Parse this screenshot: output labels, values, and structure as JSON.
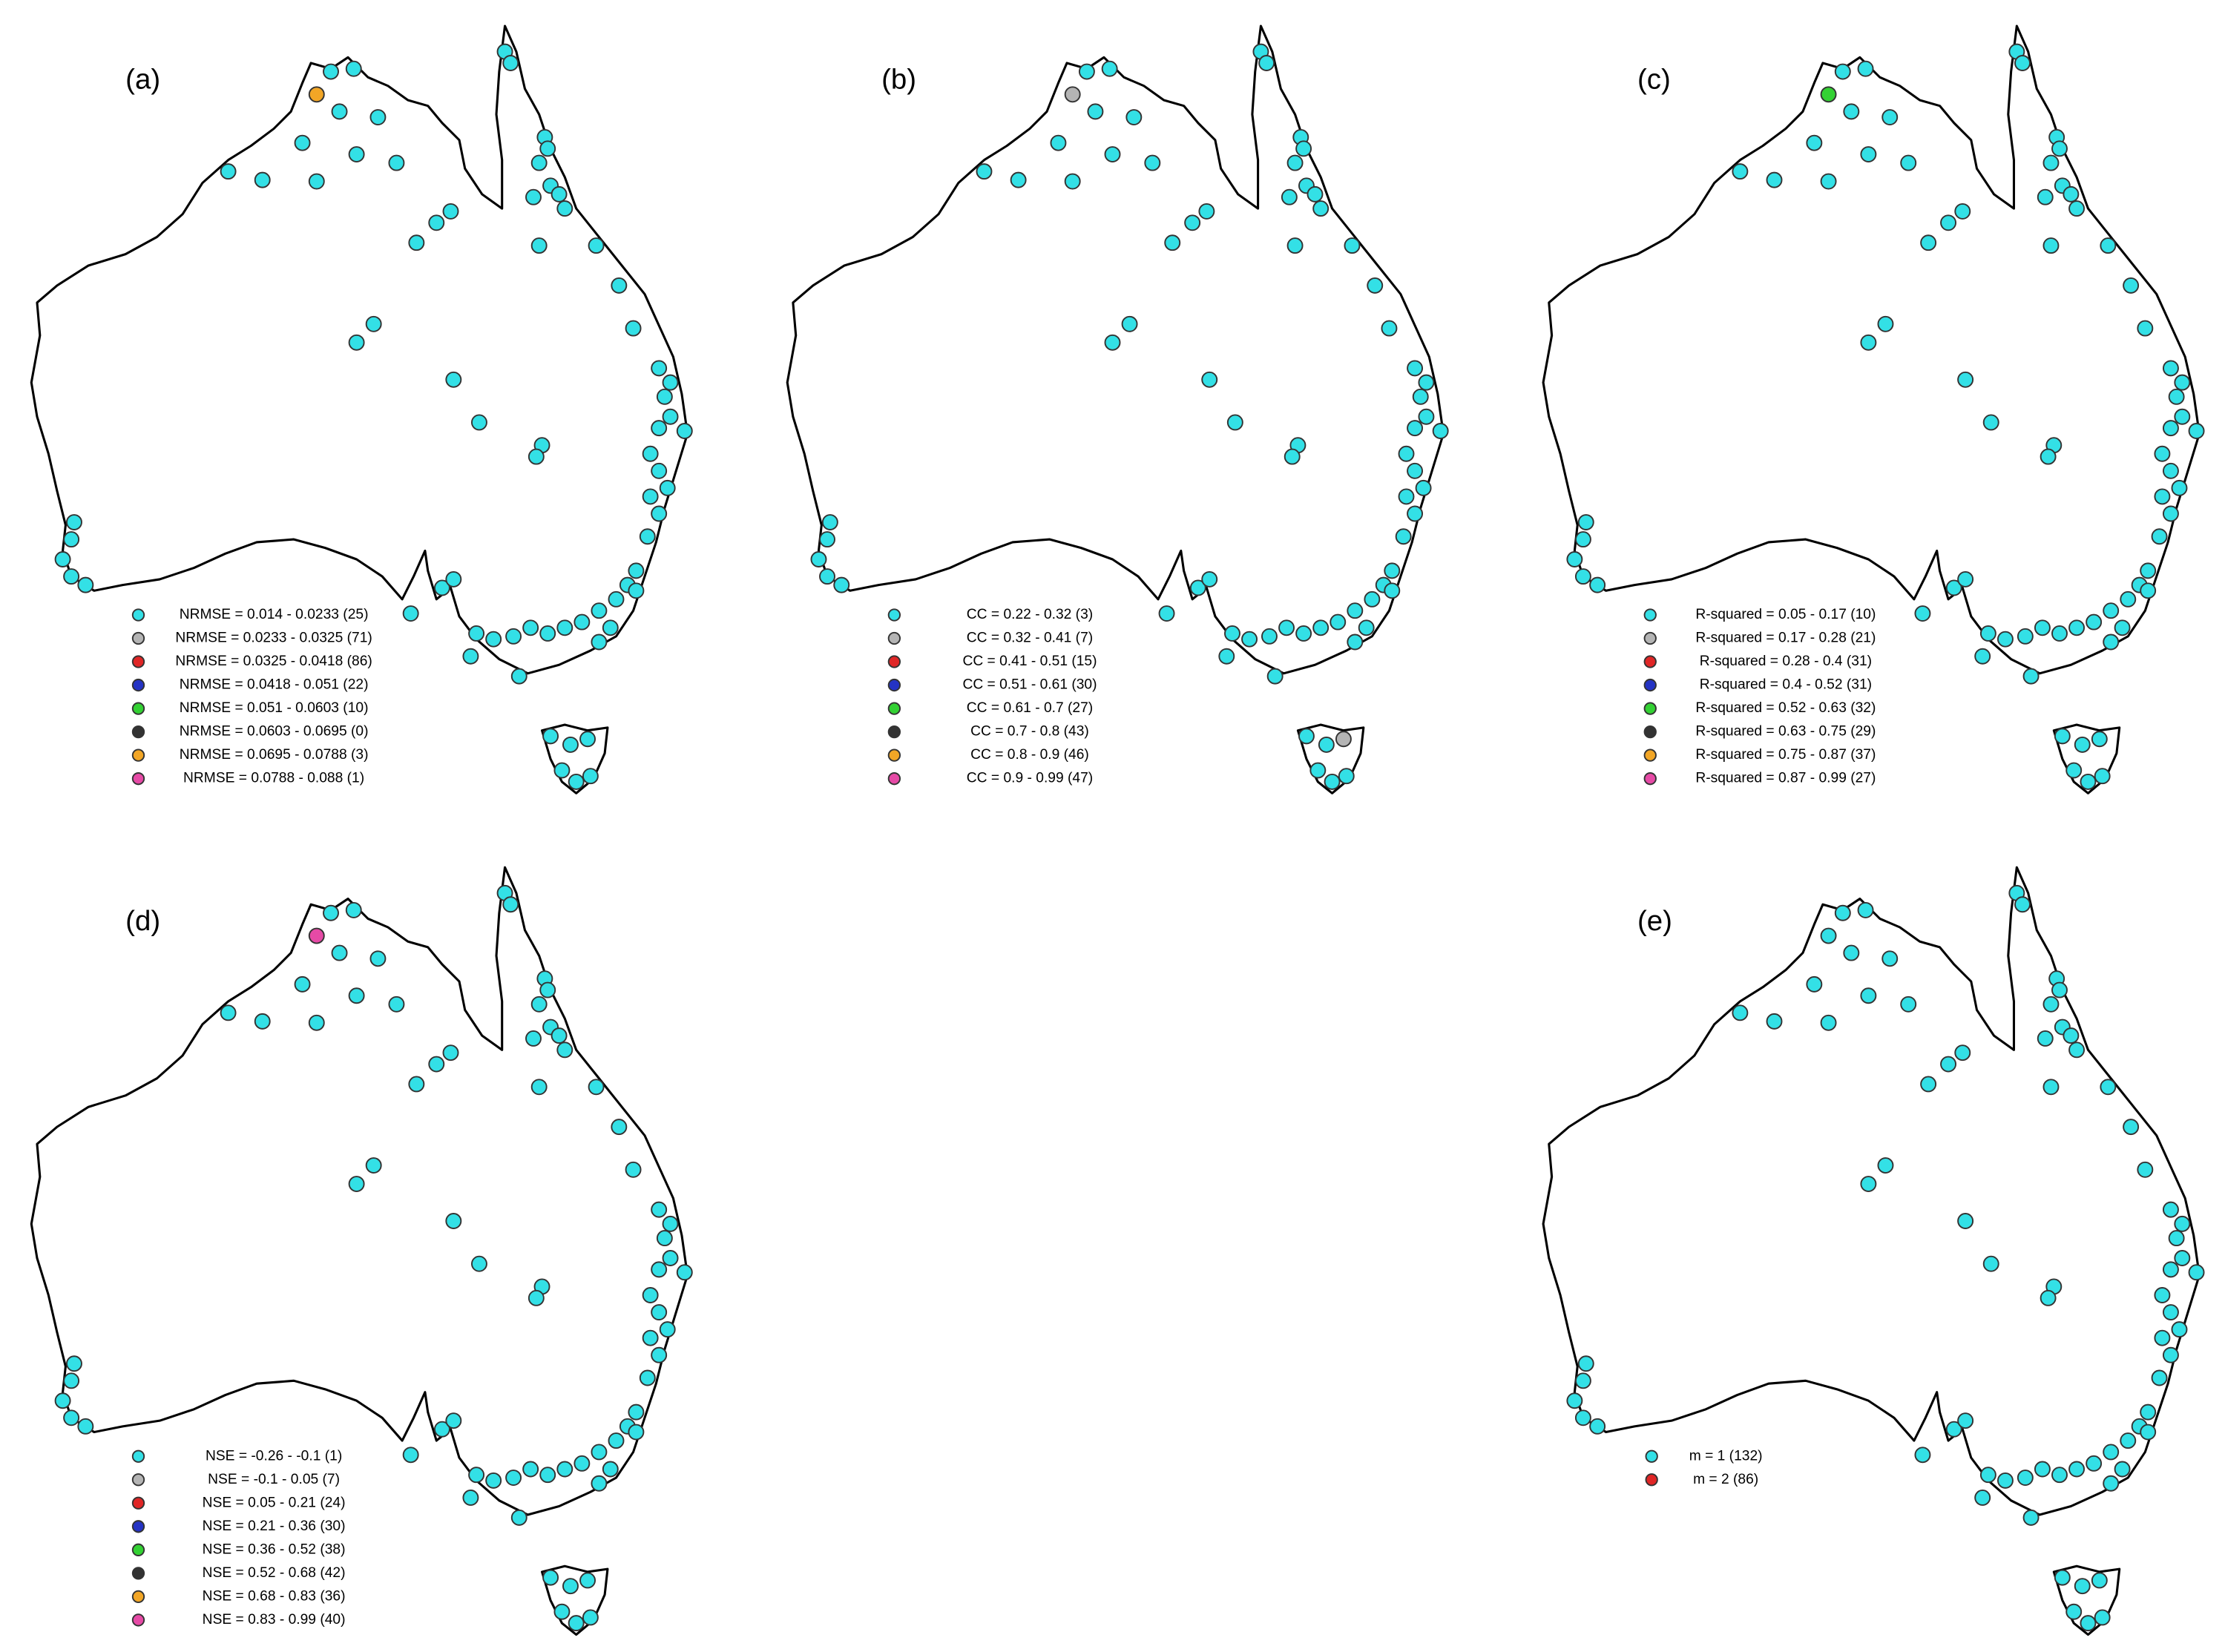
{
  "panels": [
    {
      "label": "(a)",
      "legend": [
        {
          "text": "NRMSE = 0.014 - 0.0233 (25)",
          "color": "#33e0e6"
        },
        {
          "text": "NRMSE = 0.0233 - 0.0325 (71)",
          "color": "#b4b4b4"
        },
        {
          "text": "NRMSE = 0.0325 - 0.0418 (86)",
          "color": "#e02626"
        },
        {
          "text": "NRMSE = 0.0418 - 0.051 (22)",
          "color": "#2433c4"
        },
        {
          "text": "NRMSE = 0.051 - 0.0603 (10)",
          "color": "#33d133"
        },
        {
          "text": "NRMSE = 0.0603 - 0.0695 (0)",
          "color": "#333333"
        },
        {
          "text": "NRMSE = 0.0695 - 0.0788 (3)",
          "color": "#f2a626"
        },
        {
          "text": "NRMSE = 0.0788 - 0.088 (1)",
          "color": "#e64aa6"
        }
      ]
    },
    {
      "label": "(b)",
      "legend": [
        {
          "text": "CC = 0.22 - 0.32 (3)",
          "color": "#33e0e6"
        },
        {
          "text": "CC = 0.32 - 0.41 (7)",
          "color": "#b4b4b4"
        },
        {
          "text": "CC = 0.41 - 0.51 (15)",
          "color": "#e02626"
        },
        {
          "text": "CC = 0.51 - 0.61 (30)",
          "color": "#2433c4"
        },
        {
          "text": "CC = 0.61 - 0.7 (27)",
          "color": "#33d133"
        },
        {
          "text": "CC = 0.7 - 0.8 (43)",
          "color": "#333333"
        },
        {
          "text": "CC = 0.8 - 0.9 (46)",
          "color": "#f2a626"
        },
        {
          "text": "CC = 0.9 - 0.99 (47)",
          "color": "#e64aa6"
        }
      ]
    },
    {
      "label": "(c)",
      "legend": [
        {
          "text": "R-squared = 0.05 - 0.17 (10)",
          "color": "#33e0e6"
        },
        {
          "text": "R-squared = 0.17 - 0.28 (21)",
          "color": "#b4b4b4"
        },
        {
          "text": "R-squared = 0.28 - 0.4 (31)",
          "color": "#e02626"
        },
        {
          "text": "R-squared = 0.4 - 0.52 (31)",
          "color": "#2433c4"
        },
        {
          "text": "R-squared = 0.52 - 0.63 (32)",
          "color": "#33d133"
        },
        {
          "text": "R-squared = 0.63 - 0.75 (29)",
          "color": "#333333"
        },
        {
          "text": "R-squared = 0.75 - 0.87 (37)",
          "color": "#f2a626"
        },
        {
          "text": "R-squared = 0.87 - 0.99 (27)",
          "color": "#e64aa6"
        }
      ]
    },
    {
      "label": "(d)",
      "legend": [
        {
          "text": "NSE = -0.26 - -0.1 (1)",
          "color": "#33e0e6"
        },
        {
          "text": "NSE = -0.1 - 0.05 (7)",
          "color": "#b4b4b4"
        },
        {
          "text": "NSE = 0.05 - 0.21 (24)",
          "color": "#e02626"
        },
        {
          "text": "NSE = 0.21 - 0.36 (30)",
          "color": "#2433c4"
        },
        {
          "text": "NSE = 0.36 - 0.52 (38)",
          "color": "#33d133"
        },
        {
          "text": "NSE = 0.52 - 0.68 (42)",
          "color": "#333333"
        },
        {
          "text": "NSE = 0.68 - 0.83 (36)",
          "color": "#f2a626"
        },
        {
          "text": "NSE = 0.83 - 0.99 (40)",
          "color": "#e64aa6"
        }
      ]
    },
    {
      "label": "(e)",
      "legend": [
        {
          "text": "m = 1 (132)",
          "color": "#33e0e6"
        },
        {
          "text": "m = 2 (86)",
          "color": "#e02626"
        }
      ]
    }
  ]
}
